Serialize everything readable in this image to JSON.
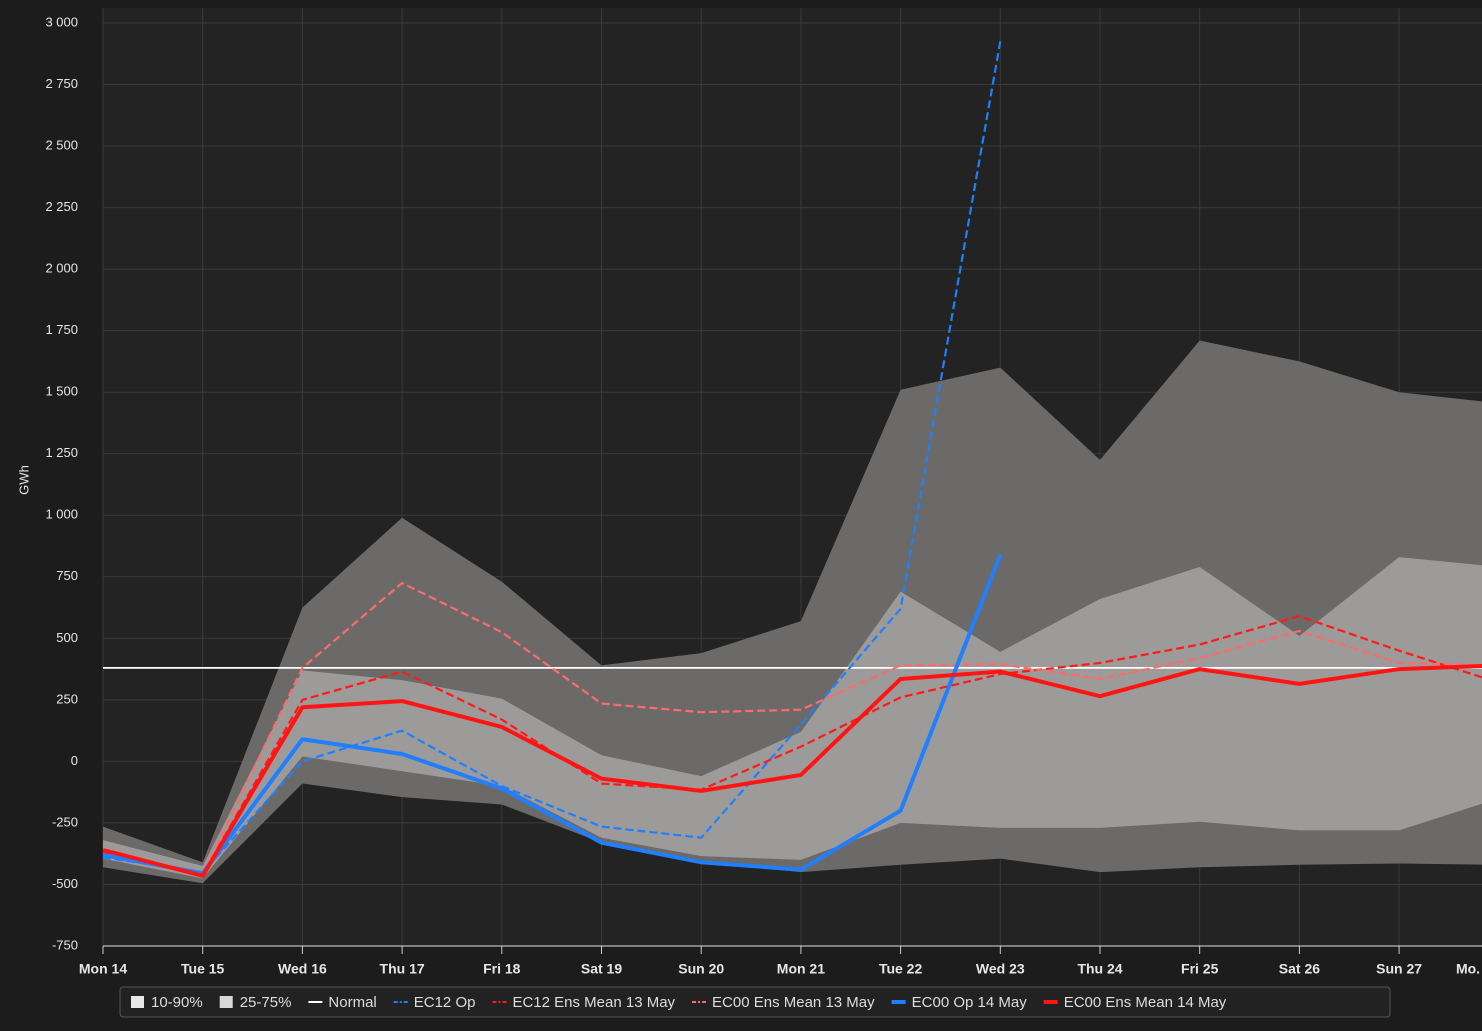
{
  "chart_data": {
    "type": "line",
    "y_label": "GWh",
    "categories": [
      "Mon 14",
      "Tue 15",
      "Wed 16",
      "Thu 17",
      "Fri 18",
      "Sat 19",
      "Sun 20",
      "Mon 21",
      "Tue 22",
      "Wed 23",
      "Thu 24",
      "Fri 25",
      "Sat 26",
      "Sun 27",
      "Mo."
    ],
    "ylim": [
      -750,
      3000
    ],
    "yticks": [
      -750,
      -500,
      -250,
      0,
      250,
      500,
      750,
      {
        "value": 1000,
        "label": "1 000"
      },
      {
        "value": 1250,
        "label": "1 250"
      },
      {
        "value": 1500,
        "label": "1 500"
      },
      {
        "value": 1750,
        "label": "1 750"
      },
      {
        "value": 2000,
        "label": "2 000"
      },
      {
        "value": 2250,
        "label": "2 250"
      },
      {
        "value": 2500,
        "label": "2 500"
      },
      {
        "value": 2750,
        "label": "2 750"
      },
      {
        "value": 3000,
        "label": "3 000"
      }
    ],
    "grid": true,
    "legend": "bottom",
    "bands": [
      {
        "name": "10-90%",
        "color": "#6b6a68",
        "low": [
          -430,
          -495,
          -90,
          -145,
          -175,
          -330,
          -410,
          -450,
          -420,
          -395,
          -450,
          -430,
          -420,
          -415,
          -420
        ],
        "high": [
          -265,
          -410,
          625,
          990,
          730,
          390,
          440,
          570,
          1510,
          1600,
          1225,
          1710,
          1625,
          1500,
          1455
        ]
      },
      {
        "name": "25-75%",
        "color": "#9c9b99",
        "low": [
          -395,
          -475,
          20,
          -40,
          -100,
          -310,
          -385,
          -400,
          -250,
          -270,
          -270,
          -245,
          -280,
          -280,
          -150
        ],
        "high": [
          -320,
          -425,
          370,
          330,
          255,
          25,
          -60,
          120,
          690,
          445,
          660,
          790,
          510,
          830,
          790
        ]
      }
    ],
    "series": [
      {
        "name": "Normal",
        "color": "#ffffff",
        "style": "thin",
        "values": [
          380,
          380,
          380,
          380,
          380,
          380,
          380,
          380,
          380,
          380,
          380,
          380,
          380,
          380,
          380
        ]
      },
      {
        "name": "EC12 Op",
        "color": "#1f7fff",
        "style": "dashed",
        "values": [
          -390,
          -450,
          0,
          125,
          -100,
          -265,
          -310,
          150,
          620,
          2925,
          null,
          null,
          null,
          null,
          null
        ]
      },
      {
        "name": "EC12 Ens Mean 13 May",
        "color": "#ff1a1a",
        "style": "dashed",
        "values": [
          -370,
          -460,
          250,
          365,
          170,
          -90,
          -115,
          60,
          260,
          355,
          400,
          475,
          590,
          450,
          320
        ]
      },
      {
        "name": "EC00 Ens Mean 13 May",
        "color": "#ff6a6a",
        "style": "dashed",
        "values": [
          -380,
          -460,
          380,
          725,
          525,
          235,
          200,
          210,
          390,
          395,
          335,
          420,
          530,
          400,
          390
        ]
      },
      {
        "name": "EC00 Op 14 May",
        "color": "#1f7fff",
        "style": "bold",
        "values": [
          -380,
          -455,
          90,
          30,
          -110,
          -330,
          -410,
          -440,
          -200,
          840,
          null,
          null,
          null,
          null,
          null
        ]
      },
      {
        "name": "EC00 Ens Mean 14 May",
        "color": "#ff1414",
        "style": "bold",
        "values": [
          -360,
          -465,
          220,
          245,
          140,
          -70,
          -120,
          -55,
          335,
          365,
          265,
          375,
          315,
          375,
          390
        ]
      }
    ]
  }
}
